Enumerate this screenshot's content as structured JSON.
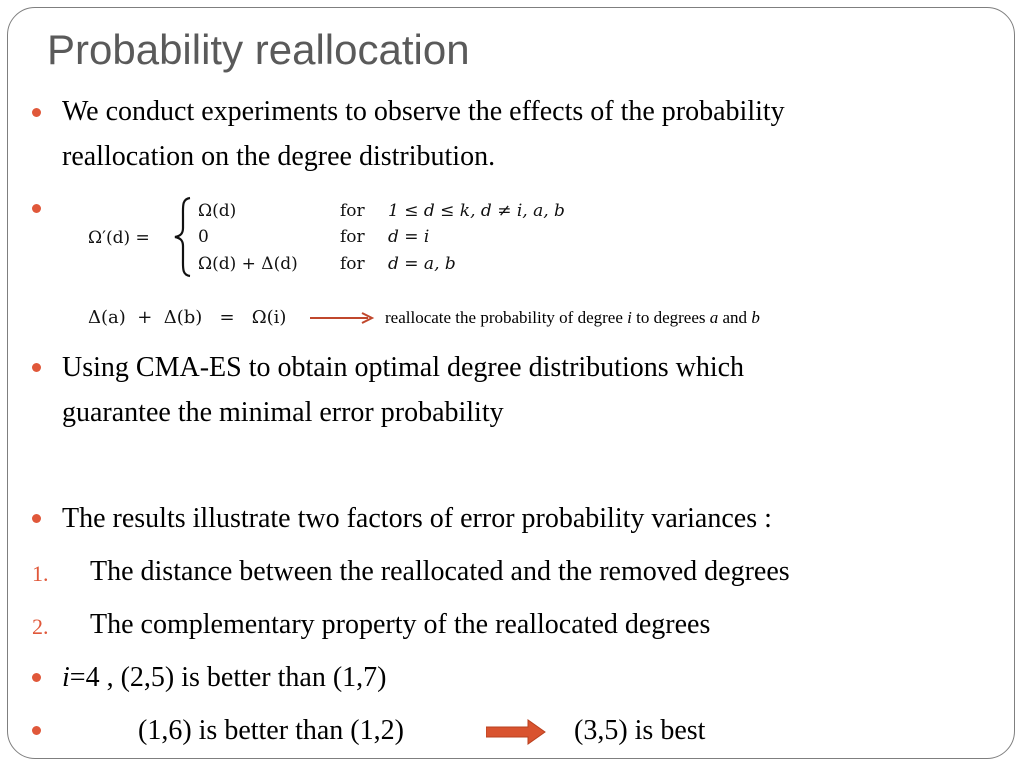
{
  "slide": {
    "title": "Probability reallocation",
    "bullet1": {
      "line1": "We conduct experiments to observe the effects of the probability",
      "line2": "reallocation on the degree distribution."
    },
    "formula": {
      "lhs": "Ω′(d) =",
      "cases": [
        {
          "value": "Ω(d)",
          "cond_word": "for",
          "condition": "1 ≤ d ≤ k, d ≠ i, a, b"
        },
        {
          "value": "0",
          "cond_word": "for",
          "condition": "d = i"
        },
        {
          "value": "Ω(d) + Δ(d)",
          "cond_word": "for",
          "condition": "d = a, b"
        }
      ],
      "sum_eq": "Δ(a)  +  Δ(b)   =   Ω(i)",
      "annotation_prefix": "reallocate the probability of degree ",
      "annotation_i": "i",
      "annotation_mid": " to degrees ",
      "annotation_a": "a",
      "annotation_and": " and ",
      "annotation_b": "b"
    },
    "bullet3": {
      "line1": "Using CMA-ES to obtain optimal degree distributions which",
      "line2": "guarantee the minimal error probability"
    },
    "bullet4": "The results illustrate two factors of error probability variances :",
    "numbered": [
      {
        "num": "1.",
        "text": "The distance between the reallocated and the removed degrees"
      },
      {
        "num": "2.",
        "text": "The complementary property of the reallocated degrees"
      }
    ],
    "bullet5": {
      "var": "i",
      "rest": "=4 , (2,5) is better than (1,7)"
    },
    "bullet6": {
      "left": "(1,6) is better than (1,2)",
      "right": "(3,5) is best"
    },
    "colors": {
      "accent": "#e0583a",
      "title": "#5a5a5a",
      "frame": "#7f7f7f"
    }
  }
}
